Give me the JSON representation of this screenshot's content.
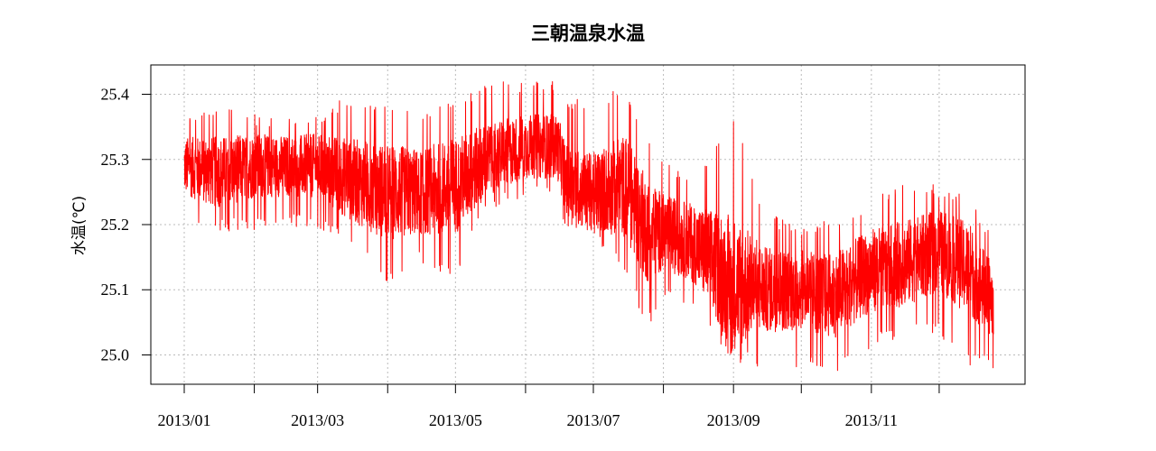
{
  "chart_data": {
    "type": "line",
    "title": "三朝温泉水温",
    "xlabel": "",
    "ylabel": "水温(℃)",
    "ylim": [
      24.955,
      25.445
    ],
    "yticks": [
      "25.0",
      "25.1",
      "25.2",
      "25.3",
      "25.4"
    ],
    "xticks": [
      "2013/01",
      "2013/03",
      "2013/05",
      "2013/07",
      "2013/09",
      "2013/11"
    ],
    "grid": true,
    "series": [
      {
        "color": "#ff0000",
        "x": [
          "2013-01-01",
          "2013-01-15",
          "2013-02-01",
          "2013-02-15",
          "2013-03-01",
          "2013-03-15",
          "2013-04-01",
          "2013-04-15",
          "2013-05-01",
          "2013-05-15",
          "2013-06-01",
          "2013-06-15",
          "2013-06-20",
          "2013-07-01",
          "2013-07-15",
          "2013-07-25",
          "2013-08-01",
          "2013-08-15",
          "2013-09-01",
          "2013-09-15",
          "2013-10-01",
          "2013-10-15",
          "2013-11-01",
          "2013-11-15",
          "2013-12-01",
          "2013-12-15",
          "2013-12-25"
        ],
        "center": [
          25.29,
          25.28,
          25.29,
          25.29,
          25.29,
          25.27,
          25.25,
          25.25,
          25.26,
          25.3,
          25.32,
          25.32,
          25.26,
          25.25,
          25.26,
          25.19,
          25.19,
          25.17,
          25.11,
          25.1,
          25.1,
          25.09,
          25.13,
          25.14,
          25.16,
          25.13,
          25.08
        ],
        "min": [
          25.2,
          25.19,
          25.19,
          25.2,
          25.19,
          25.17,
          25.11,
          25.14,
          25.12,
          25.22,
          25.24,
          25.24,
          25.18,
          25.18,
          25.12,
          25.04,
          25.09,
          25.06,
          24.99,
          24.98,
          24.98,
          24.97,
          25.01,
          25.03,
          25.03,
          24.98,
          24.98
        ],
        "max": [
          25.36,
          25.39,
          25.37,
          25.37,
          25.37,
          25.4,
          25.38,
          25.38,
          25.39,
          25.42,
          25.42,
          25.42,
          25.39,
          25.4,
          25.41,
          25.33,
          25.3,
          25.28,
          25.37,
          25.22,
          25.2,
          25.21,
          25.24,
          25.27,
          25.26,
          25.24,
          25.18
        ]
      }
    ]
  }
}
